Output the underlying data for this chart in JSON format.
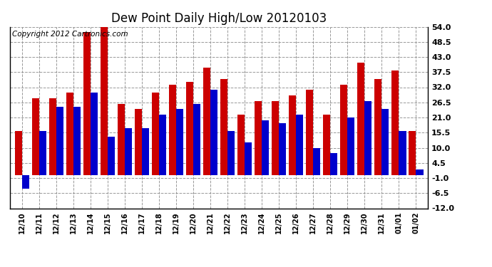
{
  "title": "Dew Point Daily High/Low 20120103",
  "copyright": "Copyright 2012 Cartronics.com",
  "dates": [
    "12/10",
    "12/11",
    "12/12",
    "12/13",
    "12/14",
    "12/15",
    "12/16",
    "12/17",
    "12/18",
    "12/19",
    "12/20",
    "12/21",
    "12/22",
    "12/23",
    "12/24",
    "12/25",
    "12/26",
    "12/27",
    "12/28",
    "12/29",
    "12/30",
    "12/31",
    "01/01",
    "01/02"
  ],
  "highs": [
    16,
    28,
    28,
    30,
    52,
    54,
    26,
    24,
    30,
    33,
    34,
    39,
    35,
    22,
    27,
    27,
    29,
    31,
    22,
    33,
    41,
    35,
    38,
    16
  ],
  "lows": [
    -5,
    16,
    25,
    25,
    30,
    14,
    17,
    17,
    22,
    24,
    26,
    31,
    16,
    12,
    20,
    19,
    22,
    10,
    8,
    21,
    27,
    24,
    16,
    2
  ],
  "ylim": [
    -12,
    54
  ],
  "yticks": [
    -12.0,
    -6.5,
    -1.0,
    4.5,
    10.0,
    15.5,
    21.0,
    26.5,
    32.0,
    37.5,
    43.0,
    48.5,
    54.0
  ],
  "bar_color_high": "#cc0000",
  "bar_color_low": "#0000cc",
  "bg_color": "#ffffff",
  "grid_color": "#999999",
  "title_fontsize": 12,
  "copyright_fontsize": 7.5,
  "fig_width": 6.9,
  "fig_height": 3.75,
  "dpi": 100
}
